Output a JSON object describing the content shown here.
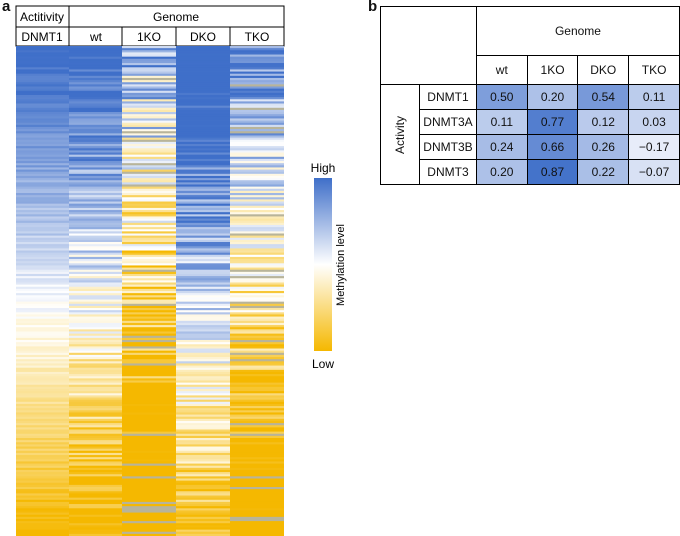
{
  "panel_a": {
    "letter": "a",
    "header_left": "Actitivity",
    "header_group": "Genome",
    "columns": [
      "DNMT1",
      "wt",
      "1KO",
      "DKO",
      "TKO"
    ],
    "legend": {
      "high": "High",
      "low": "Low",
      "title": "Methylation level"
    },
    "colors": {
      "high": "#3f6fc9",
      "mid": "#ffffff",
      "low": "#f5b800",
      "gray": "#b8b49a"
    }
  },
  "panel_b": {
    "letter": "b",
    "header_group": "Genome",
    "row_group": "Activity",
    "columns": [
      "wt",
      "1KO",
      "DKO",
      "TKO"
    ],
    "rows": [
      {
        "label": "DNMT1",
        "values": [
          "0.50",
          "0.20",
          "0.54",
          "0.11"
        ]
      },
      {
        "label": "DNMT3A",
        "values": [
          "0.11",
          "0.77",
          "0.12",
          "0.03"
        ]
      },
      {
        "label": "DNMT3B",
        "values": [
          "0.24",
          "0.66",
          "0.26",
          "−0.17"
        ]
      },
      {
        "label": "DNMT3",
        "values": [
          "0.20",
          "0.87",
          "0.22",
          "−0.07"
        ]
      }
    ]
  },
  "chart_data": [
    {
      "type": "heatmap",
      "title": "",
      "x": [
        "DNMT1",
        "wt",
        "1KO",
        "DKO",
        "TKO"
      ],
      "legend_labels": [
        "High",
        "Low"
      ],
      "colorbar_label": "Methylation level"
    },
    {
      "type": "table",
      "columns": [
        "wt",
        "1KO",
        "DKO",
        "TKO"
      ],
      "rows": [
        "DNMT1",
        "DNMT3A",
        "DNMT3B",
        "DNMT3"
      ],
      "values": [
        [
          0.5,
          0.2,
          0.54,
          0.11
        ],
        [
          0.11,
          0.77,
          0.12,
          0.03
        ],
        [
          0.24,
          0.66,
          0.26,
          -0.17
        ],
        [
          0.2,
          0.87,
          0.22,
          -0.07
        ]
      ]
    }
  ]
}
